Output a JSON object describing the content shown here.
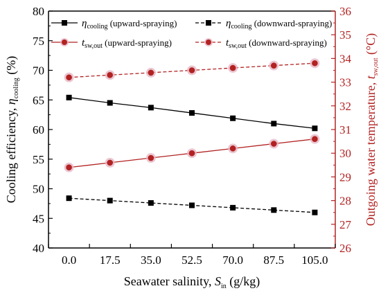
{
  "chart_data": {
    "type": "line",
    "x_label": "Seawater salinity,",
    "x_symbol": "S",
    "x_symbol_sub": "in",
    "x_unit": "(g/kg)",
    "x_categories": [
      "0.0",
      "17.5",
      "35.0",
      "52.5",
      "70.0",
      "87.5",
      "105.0"
    ],
    "left_axis": {
      "label": "Cooling efficiency,",
      "symbol": "η",
      "symbol_sub": "cooling",
      "unit": "(%)",
      "range": [
        40,
        80
      ],
      "ticks": [
        40,
        45,
        50,
        55,
        60,
        65,
        70,
        75,
        80
      ],
      "color": "#000000"
    },
    "right_axis": {
      "label": "Outgoing water temperature,",
      "symbol": "t",
      "symbol_sub": "sw,out",
      "unit": "(°C)",
      "range": [
        26,
        36
      ],
      "ticks": [
        26,
        27,
        28,
        29,
        30,
        31,
        32,
        33,
        34,
        35,
        36
      ],
      "color": "#b22222"
    },
    "series": [
      {
        "symbol": "η",
        "symbol_sub": "cooling",
        "mode": "(upward-spraying)",
        "axis": "left",
        "style": "solid",
        "marker": "square",
        "color": "#000000",
        "values": [
          65.4,
          64.5,
          63.7,
          62.8,
          61.9,
          61.0,
          60.2
        ]
      },
      {
        "symbol": "η",
        "symbol_sub": "cooling",
        "mode": "(downward-spraying)",
        "axis": "left",
        "style": "dashed",
        "marker": "square",
        "color": "#000000",
        "values": [
          48.4,
          48.0,
          47.6,
          47.2,
          46.8,
          46.4,
          46.0
        ]
      },
      {
        "symbol": "t",
        "symbol_sub": "sw,out",
        "mode": "(upward-spraying)",
        "axis": "right",
        "style": "solid",
        "marker": "circle",
        "color": "#b22222",
        "values": [
          29.4,
          29.6,
          29.8,
          30.0,
          30.2,
          30.4,
          30.6
        ]
      },
      {
        "symbol": "t",
        "symbol_sub": "sw,out",
        "mode": "(downward-spraying)",
        "axis": "right",
        "style": "dashed",
        "marker": "circle",
        "color": "#b22222",
        "values": [
          33.2,
          33.3,
          33.4,
          33.5,
          33.6,
          33.7,
          33.8
        ]
      }
    ]
  }
}
